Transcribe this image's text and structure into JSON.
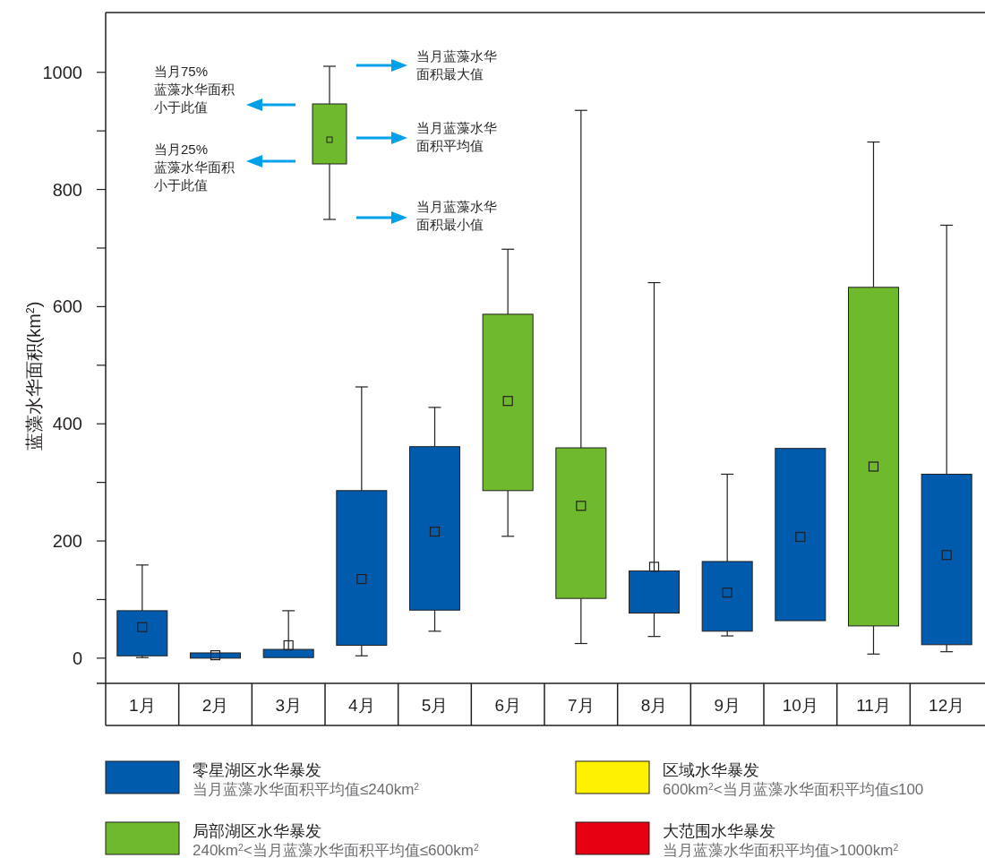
{
  "chart_data": {
    "type": "box",
    "ylabel": "蓝藻水华面积(km$^{2}$)",
    "categories": [
      "1月",
      "2月",
      "3月",
      "4月",
      "5月",
      "6月",
      "7月",
      "8月",
      "9月",
      "10月",
      "11月",
      "12月"
    ],
    "ylim": [
      -43,
      1102
    ],
    "yticks": [
      0,
      {
        "value": 100,
        "label": null
      },
      200,
      {
        "value": 300,
        "label": null
      },
      400,
      {
        "value": 500,
        "label": null
      },
      600,
      {
        "value": 700,
        "label": null
      },
      800,
      {
        "value": 900,
        "label": null
      },
      1000
    ],
    "legend": "bottom",
    "annotations": [
      "当月75%蓝藻水华面积小于此值",
      "当月25%蓝藻水华面积小于此值",
      "当月蓝藻水华面积最大值",
      "当月蓝藻水华面积平均值",
      "当月蓝藻水华面积最小值",
      "当月蓝藻水华面积平均值≤240km$^{2}$",
      "240km$^{2}$<当月蓝藻水华面积平均值≤600km$^{2}$",
      "600km$^{2}$<当月蓝藻水华面积平均值≤100",
      "当月蓝藻水华面积平均值>1000km$^{2}$"
    ],
    "series": [
      {
        "name": "零星湖区水华暴发",
        "color": "#005bac",
        "boxes": [
          {
            "low": 1,
            "q1": 4,
            "q3": 81,
            "high": 159,
            "mean": 53
          },
          {
            "low": 0,
            "q1": 0,
            "q3": 9,
            "high": 9,
            "mean": 5
          },
          {
            "low": 1,
            "q1": 1,
            "q3": 15,
            "high": 81,
            "mean": 22
          },
          {
            "low": 4,
            "q1": 22,
            "q3": 286,
            "high": 463,
            "mean": 135
          },
          {
            "low": 46,
            "q1": 82,
            "q3": 361,
            "high": 428,
            "mean": 216
          },
          null,
          null,
          {
            "low": 37,
            "q1": 77,
            "q3": 149,
            "high": 641,
            "mean": 156
          },
          {
            "low": 38,
            "q1": 46,
            "q3": 165,
            "high": 314,
            "mean": 112
          },
          {
            "low": 64,
            "q1": 64,
            "q3": 358,
            "high": 358,
            "mean": 207
          },
          null,
          {
            "low": 11,
            "q1": 23,
            "q3": 314,
            "high": 739,
            "mean": 176
          }
        ]
      },
      {
        "name": "局部湖区水华暴发",
        "color": "#6fb92c",
        "boxes": [
          null,
          null,
          null,
          null,
          null,
          {
            "low": 208,
            "q1": 286,
            "q3": 587,
            "high": 698,
            "mean": 439
          },
          {
            "low": 25,
            "q1": 102,
            "q3": 359,
            "high": 935,
            "mean": 260
          },
          null,
          null,
          null,
          {
            "low": 7,
            "q1": 55,
            "q3": 633,
            "high": 881,
            "mean": 327
          },
          null
        ]
      },
      {
        "name": "区域水华暴发",
        "color": "#fff200",
        "boxes": [
          null,
          null,
          null,
          null,
          null,
          null,
          null,
          null,
          null,
          null,
          null,
          null
        ]
      },
      {
        "name": "大范围水华暴发",
        "color": "#e60012",
        "boxes": [
          null,
          null,
          null,
          null,
          null,
          null,
          null,
          null,
          null,
          null,
          null,
          null
        ]
      }
    ]
  }
}
